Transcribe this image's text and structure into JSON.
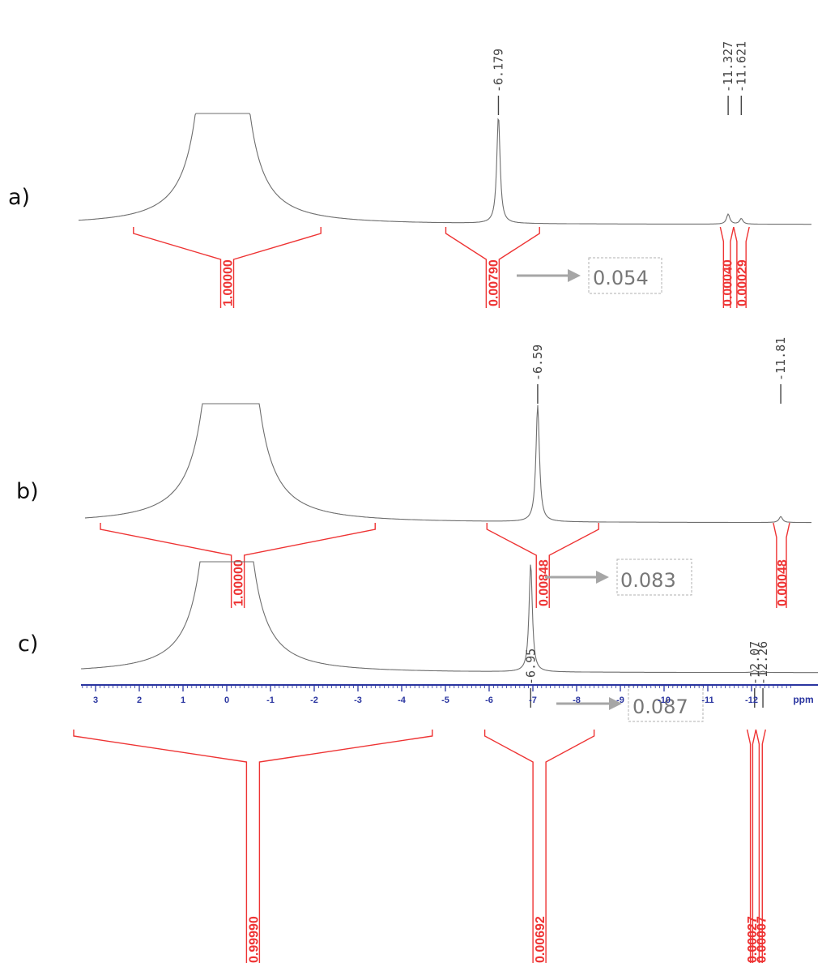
{
  "colors": {
    "spectrum": "#6e6e6e",
    "integral": "#ee3333",
    "axis": "#2a35a0",
    "arrow": "#a6a6a6",
    "label": "#444444"
  },
  "chart_data": [
    {
      "type": "line",
      "panel_label": "a)",
      "peaks": [
        {
          "ppm": 0.0,
          "rel_height": 1.0,
          "clipped": true
        },
        {
          "ppm": -6.179,
          "rel_height": 0.97
        },
        {
          "ppm": -11.327,
          "rel_height": 0.09
        },
        {
          "ppm": -11.621,
          "rel_height": 0.05
        }
      ],
      "peak_labels": [
        "-6.179",
        "-11.327",
        "-11.621"
      ],
      "integrals": [
        {
          "range": [
            2.0,
            -2.2
          ],
          "value": "1.00000"
        },
        {
          "range": [
            -5.0,
            -7.1
          ],
          "value": "0.00790"
        },
        {
          "range": [
            -11.15,
            -11.45
          ],
          "value": "0.00040"
        },
        {
          "range": [
            -11.45,
            -11.8
          ],
          "value": "0.00029"
        }
      ],
      "ratio": "0.054"
    },
    {
      "type": "line",
      "panel_label": "b)",
      "peaks": [
        {
          "ppm": 0.0,
          "rel_height": 1.0,
          "clipped": true
        },
        {
          "ppm": -6.59,
          "rel_height": 0.98
        },
        {
          "ppm": -11.81,
          "rel_height": 0.05
        }
      ],
      "peak_labels": [
        "-6.59",
        "-11.81"
      ],
      "integrals": [
        {
          "range": [
            2.8,
            -3.1
          ],
          "value": "1.00000"
        },
        {
          "range": [
            -5.5,
            -7.9
          ],
          "value": "0.00848"
        },
        {
          "range": [
            -11.65,
            -12.0
          ],
          "value": "0.00048"
        }
      ],
      "ratio": "0.083"
    },
    {
      "type": "line",
      "panel_label": "c)",
      "peaks": [
        {
          "ppm": 0.0,
          "rel_height": 1.0,
          "clipped": true
        },
        {
          "ppm": -6.95,
          "rel_height": 0.98
        },
        {
          "ppm": -12.07,
          "rel_height": 0.02
        },
        {
          "ppm": -12.26,
          "rel_height": 0.01
        }
      ],
      "peak_labels": [
        "-6.95",
        "-12.07",
        "-12.26"
      ],
      "integrals": [
        {
          "range": [
            3.5,
            -4.7
          ],
          "value": "0.99990"
        },
        {
          "range": [
            -5.9,
            -8.4
          ],
          "value": "0.00692"
        },
        {
          "range": [
            -11.9,
            -12.1
          ],
          "value": "0.00027"
        },
        {
          "range": [
            -12.1,
            -12.32
          ],
          "value": "0.00007"
        }
      ],
      "ratio": "0.087",
      "x_axis": {
        "ticks": [
          3,
          2,
          1,
          0,
          -1,
          -2,
          -3,
          -4,
          -5,
          -6,
          -7,
          -8,
          -9,
          -10,
          -11,
          -12
        ],
        "tick_labels": [
          "3",
          "2",
          "1",
          "0",
          "-1",
          "-2",
          "-3",
          "-4",
          "-5",
          "-6",
          "-7",
          "-8",
          "-9",
          "-10",
          "-11",
          "-12"
        ],
        "unit": "ppm",
        "reversed": true
      }
    }
  ]
}
